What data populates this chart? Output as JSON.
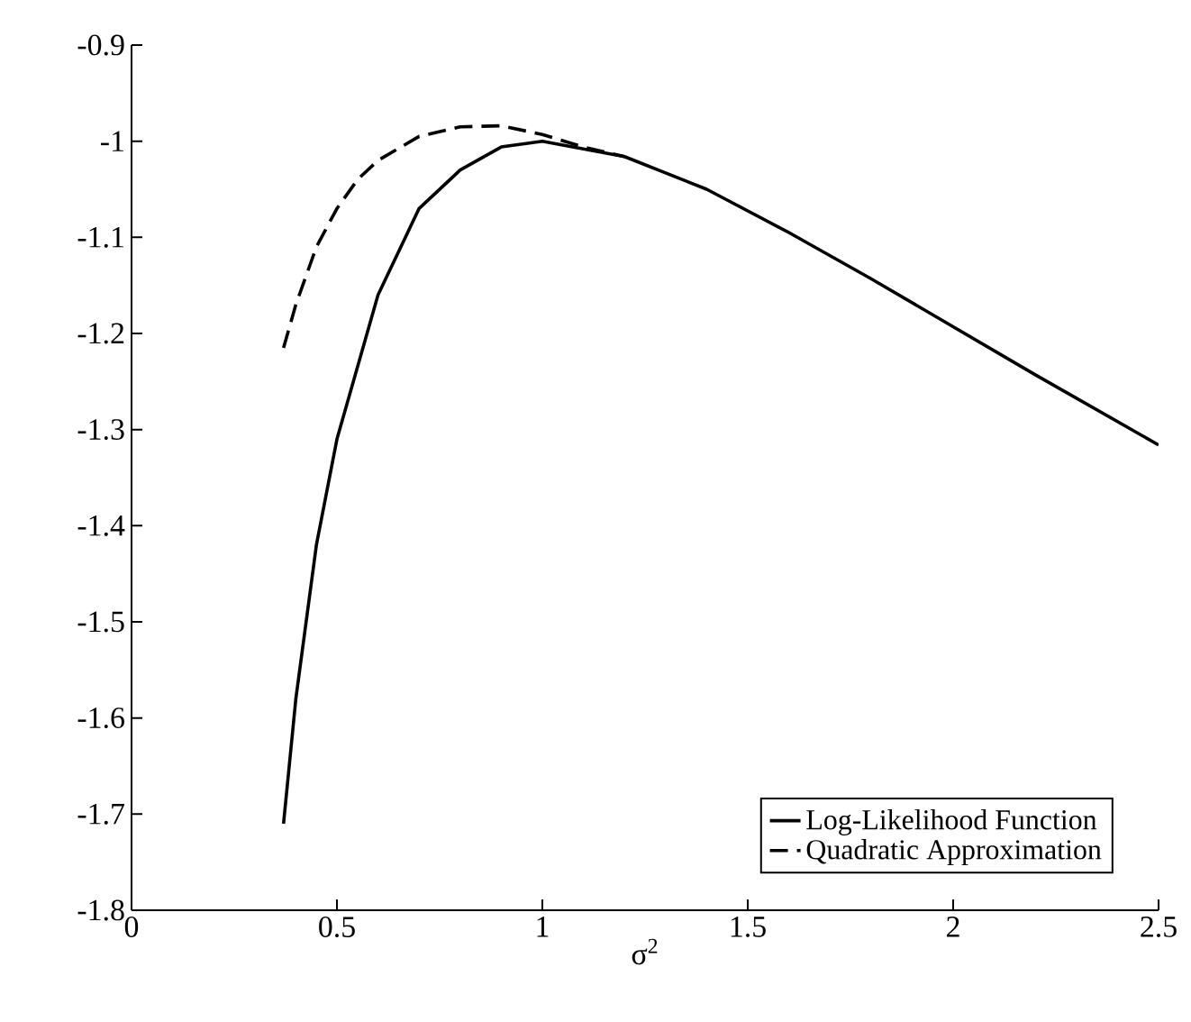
{
  "chart_data": {
    "type": "line",
    "xlabel": "σ$^{2}$",
    "xlim": [
      0,
      2.5
    ],
    "ylim": [
      -1.8,
      -0.9
    ],
    "xticks": [
      0,
      0.5,
      1,
      1.5,
      2,
      2.5
    ],
    "yticks": [
      -1.8,
      -1.7,
      -1.6,
      -1.5,
      -1.4,
      -1.3,
      -1.2,
      -1.1,
      -1,
      -0.9
    ],
    "legend": "bottom right",
    "grid": false,
    "series": [
      {
        "name": "Log-Likelihood Function",
        "color": "#000000",
        "line_style": "solid",
        "x": [
          0.37,
          0.4,
          0.45,
          0.5,
          0.6,
          0.7,
          0.8,
          0.9,
          1.0,
          1.2,
          1.4,
          1.6,
          1.8,
          2.0,
          2.2,
          2.5
        ],
        "values": [
          -1.71,
          -1.58,
          -1.42,
          -1.31,
          -1.16,
          -1.07,
          -1.03,
          -1.006,
          -1.0,
          -1.016,
          -1.05,
          -1.095,
          -1.143,
          -1.193,
          -1.243,
          -1.316
        ]
      },
      {
        "name": "Quadratic Approximation",
        "color": "#000000",
        "line_style": "dashed",
        "x": [
          0.37,
          0.4,
          0.45,
          0.5,
          0.55,
          0.6,
          0.7,
          0.8,
          0.9,
          1.0,
          1.1,
          1.2
        ],
        "values": [
          -1.215,
          -1.17,
          -1.11,
          -1.07,
          -1.04,
          -1.02,
          -0.995,
          -0.985,
          -0.984,
          -0.993,
          -1.006,
          -1.016
        ]
      }
    ]
  }
}
